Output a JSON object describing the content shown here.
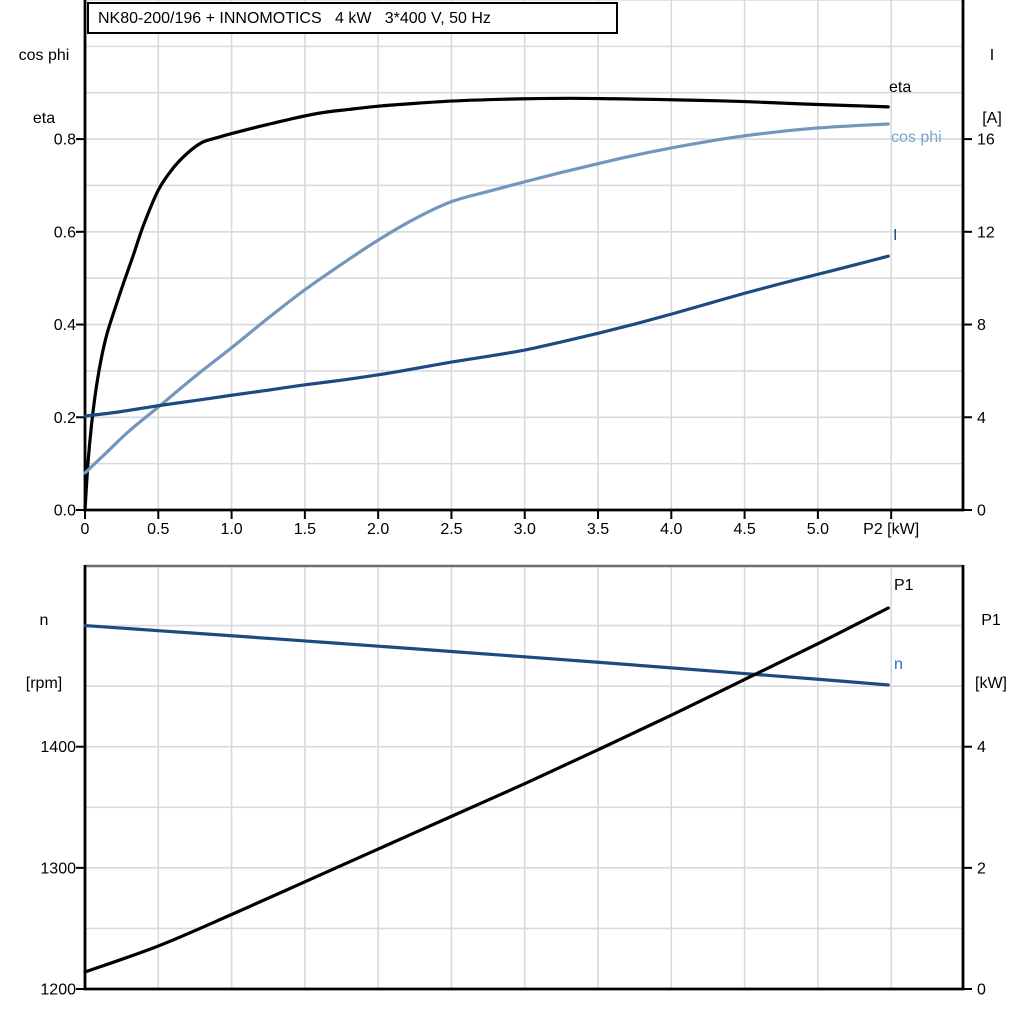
{
  "page": {
    "background": "#ffffff"
  },
  "colors": {
    "axis": "#000000",
    "gridline": "#d8dadb",
    "frame_gray": "#6f6f6f",
    "eta_curve": "#000000",
    "cosphi_curve": "#7397bc",
    "cosphi_label": "#7fa3c9",
    "current_curve": "#1c4b80",
    "speed_curve": "#1c4b80",
    "speed_label": "#2171c1"
  },
  "chart_data": [
    {
      "type": "line",
      "title": "NK80-200/196 + INNOMOTICS   4 kW   3*400 V, 50 Hz",
      "x_axis": {
        "label": "P2 [kW]",
        "min": 0,
        "max": 5.99,
        "gridlines": [
          0.5,
          1,
          1.5,
          2,
          2.5,
          3,
          3.5,
          4,
          4.5,
          5,
          5.5
        ],
        "ticks": [
          {
            "v": 0,
            "label": "0"
          },
          {
            "v": 0.5,
            "label": "0.5"
          },
          {
            "v": 1,
            "label": "1.0"
          },
          {
            "v": 1.5,
            "label": "1.5"
          },
          {
            "v": 2,
            "label": "2.0"
          },
          {
            "v": 2.5,
            "label": "2.5"
          },
          {
            "v": 3,
            "label": "3.0"
          },
          {
            "v": 3.5,
            "label": "3.5"
          },
          {
            "v": 4,
            "label": "4.0"
          },
          {
            "v": 4.5,
            "label": "4.5"
          },
          {
            "v": 5,
            "label": "5.0"
          },
          {
            "v": 5.5,
            "label": "P2 [kW]"
          }
        ]
      },
      "left_axis": {
        "title": [
          "cos phi",
          "eta"
        ],
        "min": 0,
        "max": 1.1,
        "gridlines": [
          0.1,
          0.2,
          0.3,
          0.4,
          0.5,
          0.6,
          0.7,
          0.8,
          0.9,
          1.0,
          1.1
        ],
        "ticks": [
          {
            "v": 0,
            "label": "0.0"
          },
          {
            "v": 0.2,
            "label": "0.2"
          },
          {
            "v": 0.4,
            "label": "0.4"
          },
          {
            "v": 0.6,
            "label": "0.6"
          },
          {
            "v": 0.8,
            "label": "0.8"
          }
        ]
      },
      "right_axis": {
        "title": [
          "I",
          "[A]"
        ],
        "min": 0,
        "max": 22,
        "ticks": [
          {
            "v": 0,
            "label": "0"
          },
          {
            "v": 4,
            "label": "4"
          },
          {
            "v": 8,
            "label": "8"
          },
          {
            "v": 12,
            "label": "12"
          },
          {
            "v": 16,
            "label": "16"
          }
        ]
      },
      "series": [
        {
          "name": "eta",
          "label": "eta",
          "axis": "left",
          "color": "#000000",
          "points": [
            [
              0,
              0
            ],
            [
              0.02,
              0.1
            ],
            [
              0.045,
              0.185
            ],
            [
              0.075,
              0.26
            ],
            [
              0.11,
              0.325
            ],
            [
              0.15,
              0.38
            ],
            [
              0.2,
              0.43
            ],
            [
              0.26,
              0.487
            ],
            [
              0.33,
              0.55
            ],
            [
              0.4,
              0.615
            ],
            [
              0.5,
              0.69
            ],
            [
              0.6,
              0.737
            ],
            [
              0.7,
              0.77
            ],
            [
              0.8,
              0.793
            ],
            [
              0.9,
              0.803
            ],
            [
              1.0,
              0.812
            ],
            [
              1.2,
              0.828
            ],
            [
              1.4,
              0.843
            ],
            [
              1.6,
              0.856
            ],
            [
              1.8,
              0.864
            ],
            [
              2.0,
              0.871
            ],
            [
              2.25,
              0.877
            ],
            [
              2.5,
              0.882
            ],
            [
              2.75,
              0.885
            ],
            [
              3.0,
              0.887
            ],
            [
              3.3,
              0.888
            ],
            [
              3.6,
              0.887
            ],
            [
              3.9,
              0.8855
            ],
            [
              4.2,
              0.8835
            ],
            [
              4.5,
              0.881
            ],
            [
              4.8,
              0.877
            ],
            [
              5.1,
              0.8735
            ],
            [
              5.3,
              0.8715
            ],
            [
              5.48,
              0.8695
            ]
          ]
        },
        {
          "name": "cos phi",
          "label": "cos phi",
          "axis": "left",
          "color": "#7397bc",
          "points": [
            [
              0,
              0.08
            ],
            [
              0.15,
              0.125
            ],
            [
              0.3,
              0.17
            ],
            [
              0.5,
              0.222
            ],
            [
              0.75,
              0.288
            ],
            [
              1.0,
              0.35
            ],
            [
              1.25,
              0.414
            ],
            [
              1.5,
              0.475
            ],
            [
              1.75,
              0.53
            ],
            [
              2.0,
              0.582
            ],
            [
              2.25,
              0.628
            ],
            [
              2.5,
              0.665
            ],
            [
              2.75,
              0.687
            ],
            [
              3.0,
              0.708
            ],
            [
              3.25,
              0.728
            ],
            [
              3.5,
              0.747
            ],
            [
              3.75,
              0.765
            ],
            [
              4.0,
              0.781
            ],
            [
              4.25,
              0.795
            ],
            [
              4.5,
              0.807
            ],
            [
              4.75,
              0.8165
            ],
            [
              5.0,
              0.824
            ],
            [
              5.25,
              0.829
            ],
            [
              5.48,
              0.8325
            ]
          ]
        },
        {
          "name": "I",
          "label": "I",
          "axis": "right",
          "color": "#1c4b80",
          "points": [
            [
              0,
              4.05
            ],
            [
              0.25,
              4.25
            ],
            [
              0.5,
              4.5
            ],
            [
              0.75,
              4.72
            ],
            [
              1.0,
              4.95
            ],
            [
              1.25,
              5.17
            ],
            [
              1.5,
              5.4
            ],
            [
              1.75,
              5.6
            ],
            [
              2.0,
              5.83
            ],
            [
              2.25,
              6.1
            ],
            [
              2.5,
              6.38
            ],
            [
              2.75,
              6.63
            ],
            [
              3.0,
              6.9
            ],
            [
              3.25,
              7.25
            ],
            [
              3.5,
              7.62
            ],
            [
              3.75,
              8.02
            ],
            [
              4.0,
              8.45
            ],
            [
              4.25,
              8.9
            ],
            [
              4.5,
              9.35
            ],
            [
              4.75,
              9.77
            ],
            [
              5.0,
              10.17
            ],
            [
              5.25,
              10.57
            ],
            [
              5.48,
              10.95
            ]
          ]
        }
      ]
    },
    {
      "type": "line",
      "title": "",
      "x_axis": {
        "label": "",
        "min": 0,
        "max": 5.99,
        "gridlines": [
          0.5,
          1,
          1.5,
          2,
          2.5,
          3,
          3.5,
          4,
          4.5,
          5,
          5.5
        ],
        "ticks": []
      },
      "left_axis": {
        "title": [
          "n",
          "[rpm]"
        ],
        "min": 1200,
        "max": 1550,
        "gridlines": [
          1250,
          1300,
          1350,
          1400,
          1450,
          1500
        ],
        "ticks": [
          {
            "v": 1200,
            "label": "1200"
          },
          {
            "v": 1300,
            "label": "1300"
          },
          {
            "v": 1400,
            "label": "1400"
          }
        ]
      },
      "right_axis": {
        "title": [
          "P1",
          "[kW]"
        ],
        "min": 0,
        "max": 7,
        "ticks": [
          {
            "v": 0,
            "label": "0"
          },
          {
            "v": 2,
            "label": "2"
          },
          {
            "v": 4,
            "label": "4"
          }
        ]
      },
      "series": [
        {
          "name": "n",
          "label": "n",
          "axis": "left",
          "color": "#1c4b80",
          "points": [
            [
              0,
              1500
            ],
            [
              0.5,
              1495.8
            ],
            [
              1.0,
              1491.6
            ],
            [
              1.5,
              1487.3
            ],
            [
              2.0,
              1483
            ],
            [
              2.5,
              1478.6
            ],
            [
              3.0,
              1474.2
            ],
            [
              3.5,
              1469.7
            ],
            [
              4.0,
              1465.1
            ],
            [
              4.5,
              1460.4
            ],
            [
              5.0,
              1455.7
            ],
            [
              5.48,
              1451
            ]
          ]
        },
        {
          "name": "P1",
          "label": "P1",
          "axis": "right",
          "color": "#000000",
          "points": [
            [
              0,
              0.28
            ],
            [
              0.5,
              0.71
            ],
            [
              1.0,
              1.23
            ],
            [
              1.5,
              1.77
            ],
            [
              2.0,
              2.31
            ],
            [
              2.5,
              2.85
            ],
            [
              3.0,
              3.39
            ],
            [
              3.5,
              3.95
            ],
            [
              4.0,
              4.52
            ],
            [
              4.5,
              5.11
            ],
            [
              5.0,
              5.7
            ],
            [
              5.48,
              6.29
            ]
          ]
        }
      ]
    }
  ]
}
